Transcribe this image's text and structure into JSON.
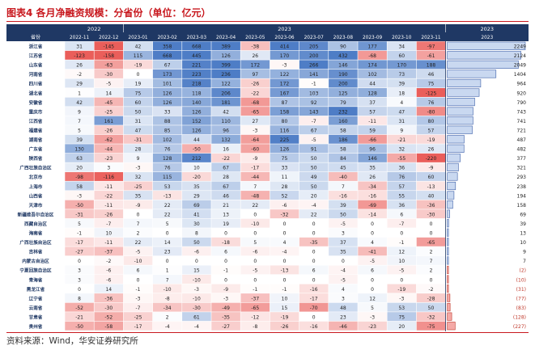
{
  "figure": {
    "title": "图表4 各月净融资规模：分省份（单位：亿元）",
    "source": "资料来源：Wind，华安证券研究所"
  },
  "chart_data": {
    "type": "table",
    "corner_label": "省份",
    "year_groups": [
      {
        "label": "2022",
        "span": 2
      },
      {
        "label": "2023",
        "span": 11
      },
      {
        "label": "2023",
        "span": 1
      }
    ],
    "months": [
      "2022-11",
      "2022-12",
      "2023-01",
      "2023-02",
      "2023-03",
      "2023-04",
      "2023-05",
      "2023-06",
      "2023-07",
      "2023-08",
      "2023-09",
      "2023-10",
      "2023-11"
    ],
    "total_header": "2023",
    "rows": [
      {
        "name": "浙江省",
        "values": [
          31,
          -145,
          42,
          358,
          668,
          389,
          -38,
          414,
          205,
          90,
          177,
          34,
          -97
        ],
        "total": "2249",
        "total_value": 2249
      },
      {
        "name": "江苏省",
        "values": [
          -123,
          -158,
          115,
          668,
          445,
          126,
          26,
          170,
          200,
          432,
          -68,
          60,
          -61
        ],
        "total": "2124",
        "total_value": 2124
      },
      {
        "name": "山东省",
        "values": [
          26,
          -63,
          -19,
          67,
          221,
          399,
          172,
          -3,
          266,
          146,
          174,
          170,
          188
        ],
        "total": "2049",
        "total_value": 2049
      },
      {
        "name": "河南省",
        "values": [
          -2,
          -30,
          0,
          173,
          223,
          236,
          97,
          122,
          141,
          190,
          102,
          73,
          46
        ],
        "total": "1404",
        "total_value": 1404
      },
      {
        "name": "四川省",
        "values": [
          29,
          -5,
          19,
          101,
          218,
          122,
          -26,
          172,
          -1,
          200,
          44,
          39,
          75
        ],
        "total": "964",
        "total_value": 964
      },
      {
        "name": "湖北省",
        "values": [
          1,
          14,
          75,
          126,
          118,
          206,
          -22,
          167,
          103,
          125,
          128,
          18,
          -125
        ],
        "total": "920",
        "total_value": 920
      },
      {
        "name": "安徽省",
        "values": [
          42,
          -45,
          60,
          126,
          140,
          181,
          -68,
          87,
          92,
          79,
          37,
          4,
          76
        ],
        "total": "790",
        "total_value": 790
      },
      {
        "name": "重庆市",
        "values": [
          9,
          -25,
          50,
          33,
          126,
          42,
          -65,
          158,
          143,
          232,
          57,
          47,
          -80
        ],
        "total": "743",
        "total_value": 743
      },
      {
        "name": "江西省",
        "values": [
          7,
          161,
          31,
          88,
          152,
          110,
          27,
          80,
          -7,
          160,
          -11,
          31,
          80
        ],
        "total": "741",
        "total_value": 741
      },
      {
        "name": "福建省",
        "values": [
          5,
          -26,
          47,
          85,
          126,
          96,
          -3,
          116,
          67,
          58,
          59,
          9,
          57
        ],
        "total": "721",
        "total_value": 721
      },
      {
        "name": "湖南省",
        "values": [
          39,
          -62,
          -31,
          102,
          44,
          132,
          -64,
          225,
          -5,
          186,
          -66,
          -21,
          -19
        ],
        "total": "487",
        "total_value": 487
      },
      {
        "name": "广东省",
        "values": [
          130,
          -44,
          28,
          76,
          -50,
          16,
          -60,
          126,
          91,
          58,
          96,
          32,
          26
        ],
        "total": "482",
        "total_value": 482
      },
      {
        "name": "陕西省",
        "values": [
          63,
          -23,
          9,
          128,
          212,
          -22,
          -9,
          75,
          50,
          84,
          146,
          -55,
          -220
        ],
        "total": "377",
        "total_value": 377
      },
      {
        "name": "广西壮族自治区",
        "values": [
          20,
          3,
          -3,
          76,
          10,
          67,
          -17,
          33,
          50,
          45,
          35,
          36,
          -9
        ],
        "total": "321",
        "total_value": 321
      },
      {
        "name": "北京市",
        "values": [
          -98,
          -116,
          32,
          115,
          -20,
          28,
          -44,
          11,
          49,
          -40,
          26,
          76,
          60
        ],
        "total": "293",
        "total_value": 293
      },
      {
        "name": "上海市",
        "values": [
          58,
          -11,
          -25,
          53,
          35,
          67,
          7,
          28,
          50,
          7,
          -34,
          57,
          -13
        ],
        "total": "238",
        "total_value": 238
      },
      {
        "name": "山西省",
        "values": [
          -3,
          -22,
          35,
          -13,
          29,
          46,
          -48,
          52,
          20,
          -16,
          -16,
          55,
          40
        ],
        "total": "194",
        "total_value": 194
      },
      {
        "name": "天津市",
        "values": [
          -50,
          -11,
          -9,
          22,
          69,
          21,
          22,
          -6,
          -4,
          39,
          -69,
          36,
          -36
        ],
        "total": "158",
        "total_value": 158
      },
      {
        "name": "新疆维吾尔自治区",
        "values": [
          -31,
          -26,
          0,
          22,
          41,
          13,
          0,
          -32,
          22,
          50,
          -14,
          6,
          -30
        ],
        "total": "69",
        "total_value": 69
      },
      {
        "name": "西藏自治区",
        "values": [
          5,
          -7,
          7,
          5,
          30,
          19,
          -10,
          0,
          0,
          -5,
          0,
          -7,
          0
        ],
        "total": "39",
        "total_value": 39
      },
      {
        "name": "海南省",
        "values": [
          -1,
          10,
          2,
          0,
          8,
          0,
          0,
          0,
          0,
          3,
          0,
          0,
          0
        ],
        "total": "13",
        "total_value": 13
      },
      {
        "name": "广西壮族自治区",
        "values": [
          -17,
          -11,
          22,
          14,
          50,
          -18,
          5,
          4,
          -35,
          37,
          4,
          -1,
          -65
        ],
        "total": "10",
        "total_value": 10
      },
      {
        "name": "吉林省",
        "values": [
          -27,
          -37,
          -5,
          23,
          -6,
          6,
          -6,
          -4,
          0,
          35,
          -41,
          12,
          2
        ],
        "total": "9",
        "total_value": 9
      },
      {
        "name": "内蒙古自治区",
        "values": [
          0,
          -2,
          -10,
          0,
          0,
          0,
          0,
          0,
          0,
          0,
          -5,
          10,
          7
        ],
        "total": "7",
        "total_value": 7
      },
      {
        "name": "宁夏回族自治区",
        "values": [
          3,
          -6,
          6,
          1,
          15,
          -1,
          -5,
          -13,
          6,
          -4,
          6,
          -5,
          2
        ],
        "total": "(2)",
        "total_value": -2
      },
      {
        "name": "青海省",
        "values": [
          3,
          -6,
          0,
          7,
          -10,
          0,
          0,
          0,
          0,
          -5,
          0,
          0,
          0
        ],
        "total": "(10)",
        "total_value": -10
      },
      {
        "name": "黑龙江省",
        "values": [
          0,
          14,
          -1,
          -10,
          -3,
          -9,
          -1,
          -1,
          -16,
          4,
          0,
          -19,
          -2
        ],
        "total": "(31)",
        "total_value": -31
      },
      {
        "name": "辽宁省",
        "values": [
          8,
          -36,
          -3,
          -8,
          -10,
          -3,
          -37,
          10,
          -17,
          3,
          12,
          -3,
          -28
        ],
        "total": "(77)",
        "total_value": -77
      },
      {
        "name": "云南省",
        "values": [
          -52,
          -30,
          -7,
          -34,
          -30,
          -49,
          -65,
          15,
          -70,
          48,
          5,
          53,
          50
        ],
        "total": "(83)",
        "total_value": -83
      },
      {
        "name": "甘肃省",
        "values": [
          -21,
          -52,
          -25,
          2,
          61,
          -35,
          -12,
          -19,
          0,
          23,
          -3,
          75,
          -32
        ],
        "total": "(128)",
        "total_value": -128
      },
      {
        "name": "贵州省",
        "values": [
          -50,
          -58,
          -17,
          -4,
          -4,
          -27,
          -8,
          -26,
          -16,
          -46,
          -23,
          20,
          -75
        ],
        "total": "(227)",
        "total_value": -227
      }
    ]
  }
}
